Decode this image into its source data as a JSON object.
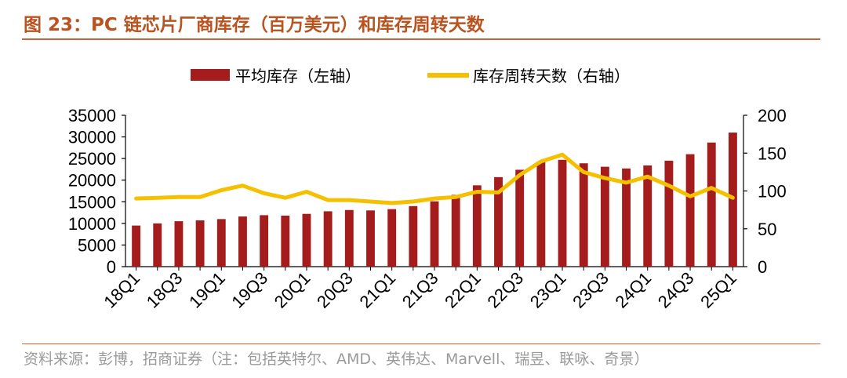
{
  "title": "图 23：PC 链芯片厂商库存（百万美元）和库存周转天数",
  "source": "资料来源：彭博，招商证券（注：包括英特尔、AMD、英伟达、Marvell、瑞昱、联咏、奇景）",
  "colors": {
    "bar": "#a51c1c",
    "line": "#f4c000",
    "title": "#b9531f",
    "source": "#9a9a9a"
  },
  "chart_data": {
    "type": "bar+line",
    "categories": [
      "18Q1",
      "18Q2",
      "18Q3",
      "18Q4",
      "19Q1",
      "19Q2",
      "19Q3",
      "19Q4",
      "20Q1",
      "20Q2",
      "20Q3",
      "20Q4",
      "21Q1",
      "21Q2",
      "21Q3",
      "21Q4",
      "22Q1",
      "22Q2",
      "22Q3",
      "22Q4",
      "23Q1",
      "23Q2",
      "23Q3",
      "23Q4",
      "24Q1",
      "24Q2",
      "24Q3",
      "24Q4",
      "25Q1"
    ],
    "tick_labels_shown": [
      "18Q1",
      "18Q3",
      "19Q1",
      "19Q3",
      "20Q1",
      "20Q3",
      "21Q1",
      "21Q3",
      "22Q1",
      "22Q3",
      "23Q1",
      "23Q3",
      "24Q1",
      "24Q3",
      "25Q1"
    ],
    "series": [
      {
        "name": "平均库存（左轴）",
        "type": "bar",
        "axis": "left",
        "values": [
          9500,
          10000,
          10500,
          10700,
          11000,
          11600,
          11900,
          11800,
          12200,
          12800,
          13100,
          13000,
          13300,
          14000,
          15100,
          16600,
          18800,
          20700,
          22400,
          24300,
          24700,
          23900,
          23100,
          22700,
          23400,
          24500,
          26000,
          28700,
          31000
        ]
      },
      {
        "name": "库存周转天数（右轴）",
        "type": "line",
        "axis": "right",
        "values": [
          90,
          91,
          92,
          92,
          101,
          107,
          97,
          91,
          99,
          88,
          88,
          86,
          84,
          86,
          90,
          92,
          99,
          98,
          121,
          139,
          148,
          125,
          117,
          111,
          119,
          107,
          93,
          104,
          91
        ]
      }
    ],
    "y_left": {
      "min": 0,
      "max": 35000,
      "ticks": [
        0,
        5000,
        10000,
        15000,
        20000,
        25000,
        30000,
        35000
      ]
    },
    "y_right": {
      "min": 0,
      "max": 200,
      "ticks": [
        0,
        50,
        100,
        150,
        200
      ]
    },
    "legend": "top-center",
    "grid": false
  }
}
